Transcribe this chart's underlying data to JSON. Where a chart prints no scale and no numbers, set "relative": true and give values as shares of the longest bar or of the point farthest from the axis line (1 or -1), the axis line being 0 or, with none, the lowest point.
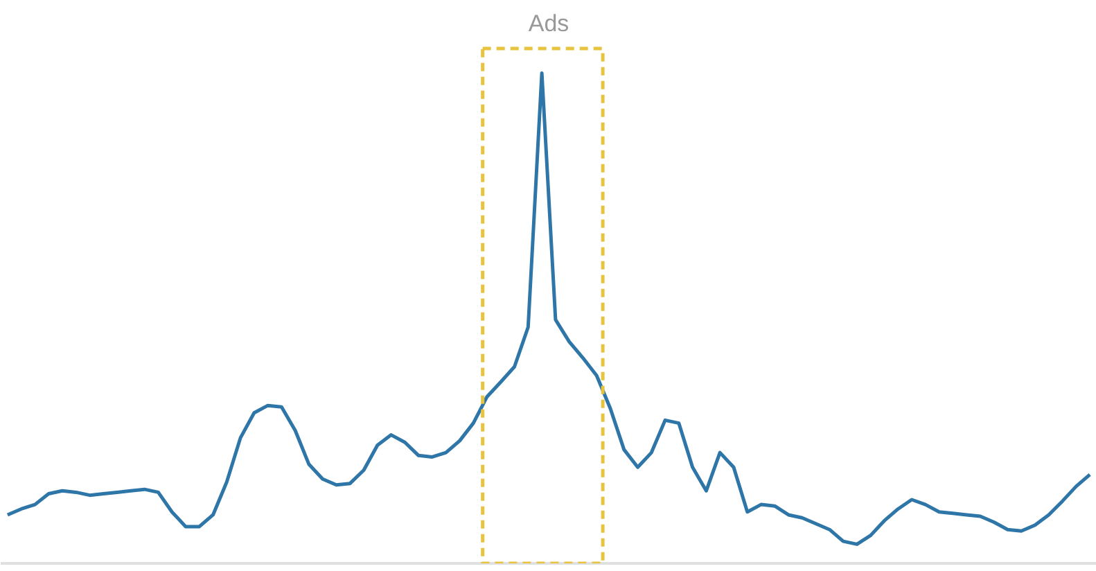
{
  "chart_data": {
    "type": "line",
    "title": "Ads",
    "relative": true,
    "categories": [
      null,
      null,
      null,
      null,
      null,
      null,
      null,
      null,
      null,
      null,
      null,
      null,
      null,
      null,
      null,
      null,
      null,
      null,
      null,
      null,
      null,
      null,
      null,
      null,
      null,
      null,
      null,
      null,
      null,
      null,
      null,
      null,
      null,
      null,
      null,
      null,
      null,
      null,
      null,
      null,
      null,
      null,
      null,
      null,
      null,
      null,
      null,
      null,
      null,
      null,
      null,
      null,
      null,
      null,
      null,
      null,
      null,
      null,
      null,
      null,
      null,
      null,
      null,
      null,
      null,
      null,
      null,
      null,
      null,
      null,
      null,
      null,
      null,
      null,
      null,
      null,
      null,
      null,
      null,
      null
    ],
    "series": [
      {
        "color": "#2e75a8",
        "values": [
          0.099,
          0.111,
          0.12,
          0.142,
          0.148,
          0.145,
          0.139,
          0.142,
          0.145,
          0.148,
          0.151,
          0.145,
          0.105,
          0.075,
          0.075,
          0.099,
          0.166,
          0.256,
          0.307,
          0.322,
          0.319,
          0.271,
          0.202,
          0.172,
          0.16,
          0.163,
          0.19,
          0.241,
          0.262,
          0.247,
          0.22,
          0.217,
          0.226,
          0.25,
          0.286,
          0.34,
          0.37,
          0.401,
          0.482,
          1.0,
          0.497,
          0.452,
          0.419,
          0.383,
          0.316,
          0.232,
          0.196,
          0.226,
          0.292,
          0.286,
          0.196,
          0.148,
          0.226,
          0.196,
          0.105,
          0.12,
          0.117,
          0.099,
          0.093,
          0.081,
          0.069,
          0.045,
          0.039,
          0.057,
          0.087,
          0.111,
          0.13,
          0.12,
          0.105,
          0.102,
          0.099,
          0.096,
          0.084,
          0.069,
          0.066,
          0.078,
          0.099,
          0.127,
          0.157,
          0.181
        ]
      }
    ],
    "marker": "none",
    "line_style": "solid",
    "grid": false,
    "tick_labels": false
  }
}
